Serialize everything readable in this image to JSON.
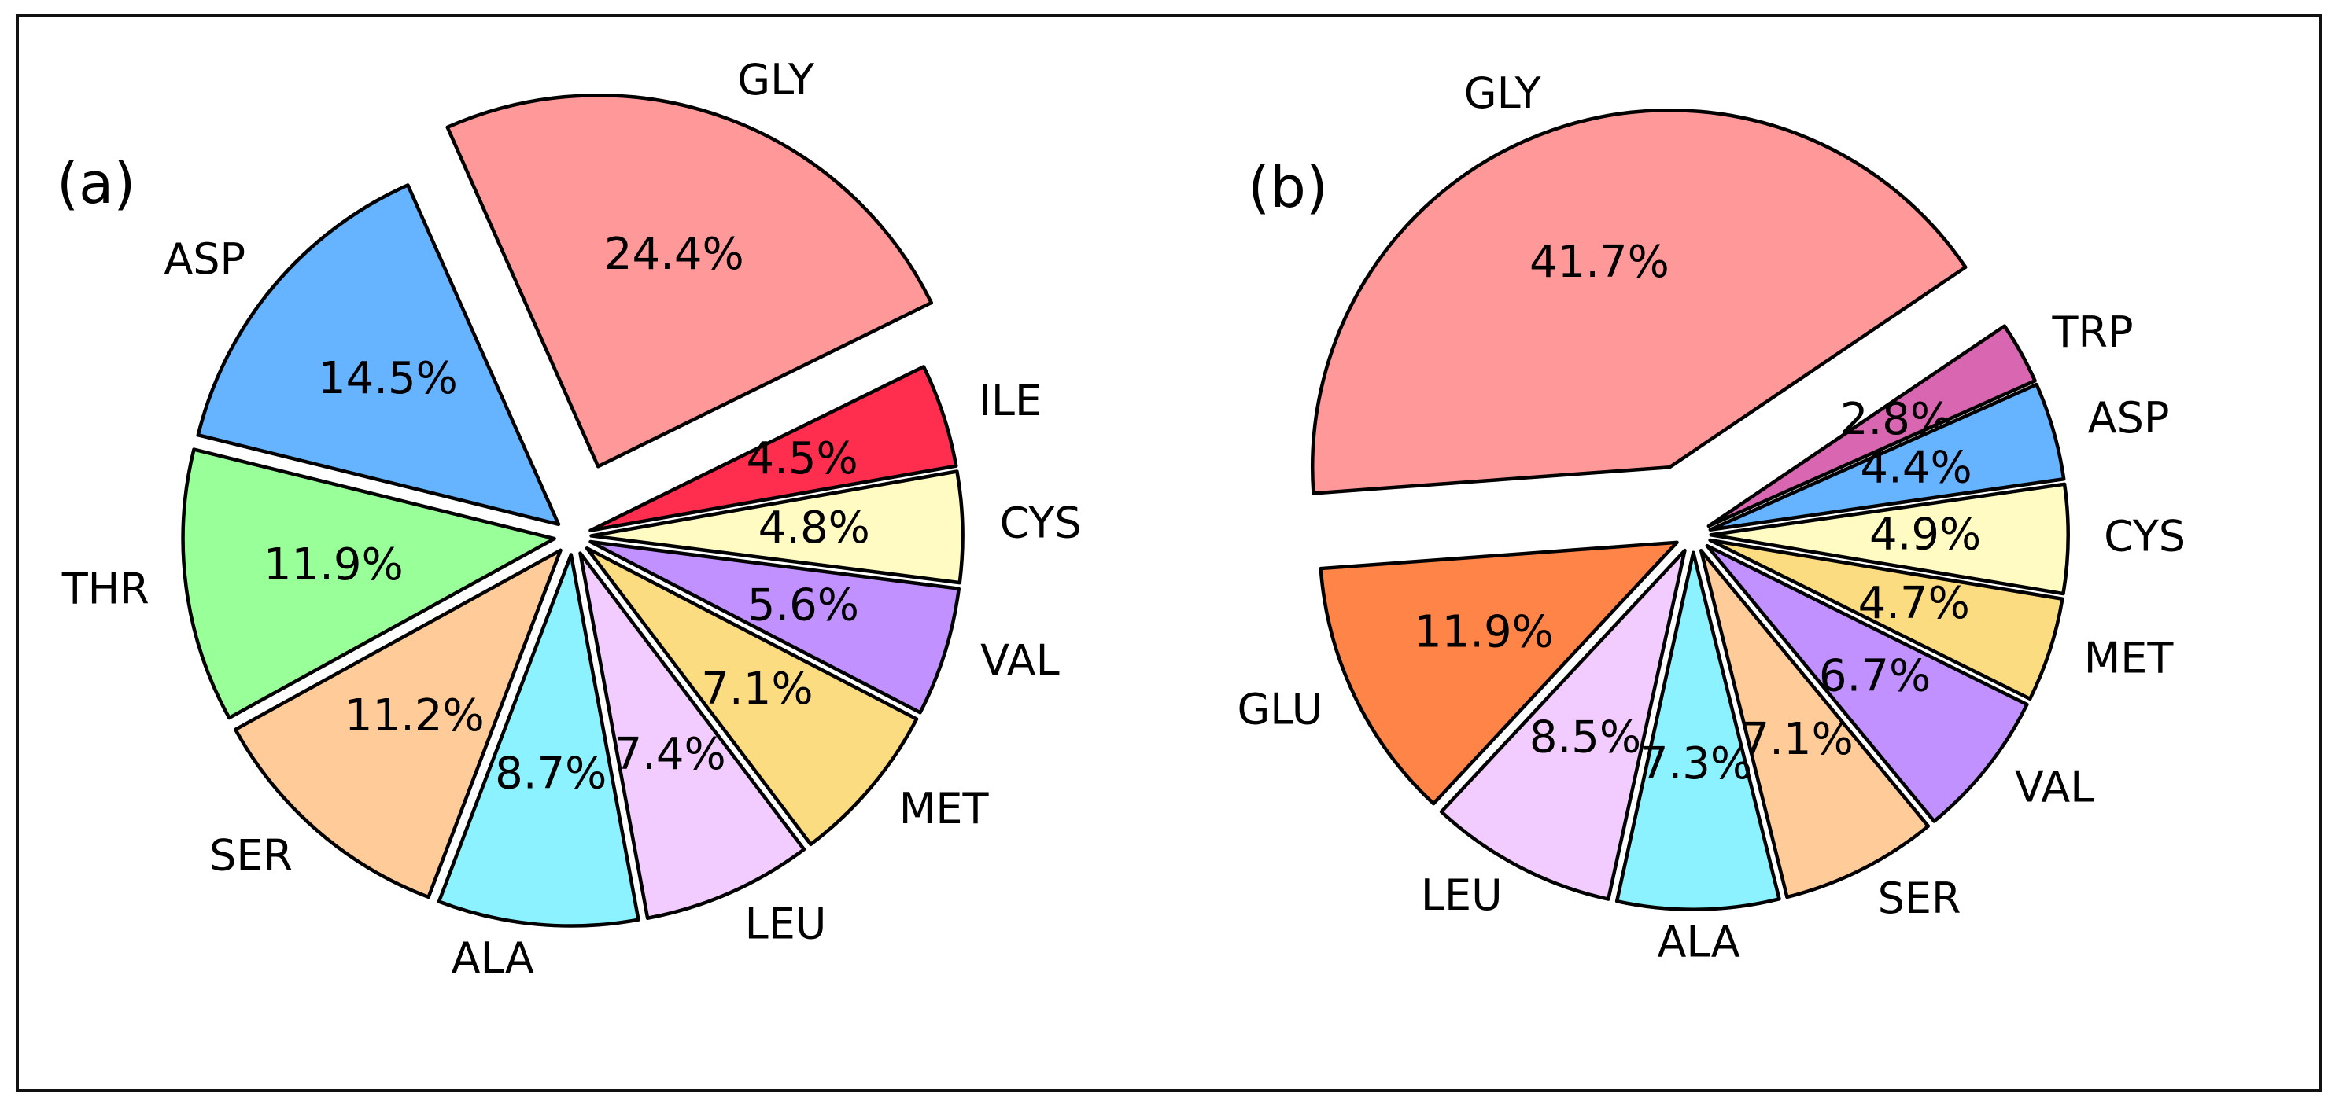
{
  "chart_data": [
    {
      "type": "pie",
      "panel_label": "(a)",
      "title": "",
      "startangle": 10,
      "counterclockwise": true,
      "slices": [
        {
          "label": "ILE",
          "value": 4.5,
          "display": "4.5%",
          "color": "#ff2e4f",
          "explode": 0.05
        },
        {
          "label": "GLY",
          "value": 24.4,
          "display": "24.4%",
          "color": "#ff9999",
          "explode": 0.2
        },
        {
          "label": "ASP",
          "value": 14.5,
          "display": "14.5%",
          "color": "#66b3ff",
          "explode": 0.05
        },
        {
          "label": "THR",
          "value": 11.9,
          "display": "11.9%",
          "color": "#99ff99",
          "explode": 0.05
        },
        {
          "label": "SER",
          "value": 11.2,
          "display": "11.2%",
          "color": "#ffcc99",
          "explode": 0.05
        },
        {
          "label": "ALA",
          "value": 8.7,
          "display": "8.7%",
          "color": "#8cf2ff",
          "explode": 0.05
        },
        {
          "label": "LEU",
          "value": 7.4,
          "display": "7.4%",
          "color": "#f2ccff",
          "explode": 0.05
        },
        {
          "label": "MET",
          "value": 7.1,
          "display": "7.1%",
          "color": "#fcdc80",
          "explode": 0.05
        },
        {
          "label": "VAL",
          "value": 5.6,
          "display": "5.6%",
          "color": "#c191ff",
          "explode": 0.05
        },
        {
          "label": "CYS",
          "value": 4.8,
          "display": "4.8%",
          "color": "#fffbc2",
          "explode": 0.05
        }
      ]
    },
    {
      "type": "pie",
      "panel_label": "(b)",
      "title": "",
      "startangle": 24,
      "counterclockwise": true,
      "slices": [
        {
          "label": "TRP",
          "value": 2.8,
          "display": "2.8%",
          "color": "#d966b0",
          "explode": 0.05
        },
        {
          "label": "GLY",
          "value": 41.7,
          "display": "41.7%",
          "color": "#ff9999",
          "explode": 0.2
        },
        {
          "label": "GLU",
          "value": 11.9,
          "display": "11.9%",
          "color": "#ff8448",
          "explode": 0.05
        },
        {
          "label": "LEU",
          "value": 8.5,
          "display": "8.5%",
          "color": "#f2ccff",
          "explode": 0.05
        },
        {
          "label": "ALA",
          "value": 7.3,
          "display": "7.3%",
          "color": "#8cf2ff",
          "explode": 0.05
        },
        {
          "label": "SER",
          "value": 7.1,
          "display": "7.1%",
          "color": "#ffcc99",
          "explode": 0.05
        },
        {
          "label": "VAL",
          "value": 6.7,
          "display": "6.7%",
          "color": "#c191ff",
          "explode": 0.05
        },
        {
          "label": "MET",
          "value": 4.7,
          "display": "4.7%",
          "color": "#fcdc80",
          "explode": 0.05
        },
        {
          "label": "CYS",
          "value": 4.9,
          "display": "4.9%",
          "color": "#fffbc2",
          "explode": 0.05
        },
        {
          "label": "ASP",
          "value": 4.4,
          "display": "4.4%",
          "color": "#66b3ff",
          "explode": 0.05
        }
      ]
    }
  ]
}
